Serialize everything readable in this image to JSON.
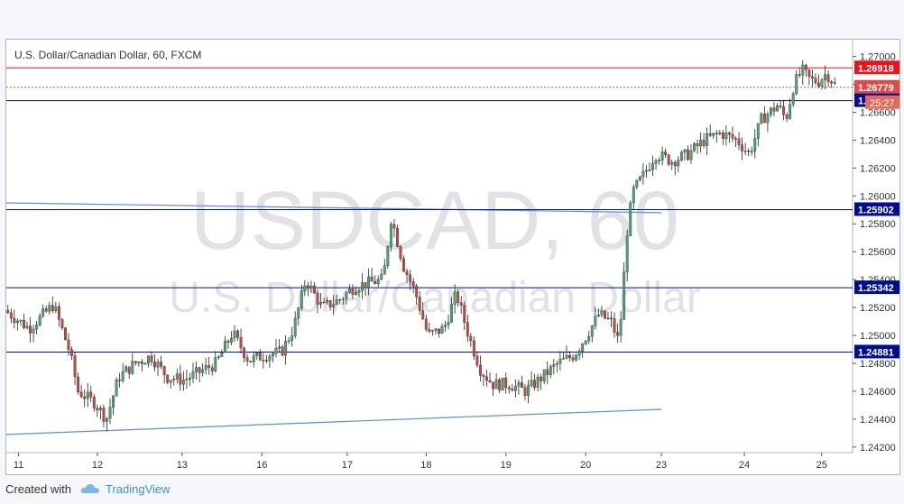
{
  "chart_data": {
    "type": "candlestick",
    "title": "U.S. Dollar/Canadian Dollar, 60, FXCM",
    "watermark": {
      "symbol": "USDCAD, 60",
      "name": "U.S. Dollar/Canadian Dollar"
    },
    "ylim": [
      1.2416,
      1.2712
    ],
    "y_ticks": [
      "1.27000",
      "1.26800",
      "1.26600",
      "1.26400",
      "1.26200",
      "1.26000",
      "1.25800",
      "1.25600",
      "1.25400",
      "1.25200",
      "1.25000",
      "1.24800",
      "1.24600",
      "1.24400",
      "1.24200"
    ],
    "x_ticks": [
      "11",
      "12",
      "13",
      "16",
      "17",
      "18",
      "19",
      "20",
      "23",
      "24",
      "25"
    ],
    "price_lines": [
      {
        "value": 1.26918,
        "label": "1.26918",
        "color": "#e8141c",
        "style": "solid"
      },
      {
        "value": 1.26779,
        "label": "1.26779",
        "color": "#e24a4a",
        "style": "dashed"
      },
      {
        "value": 1.26683,
        "label": "1.26683",
        "color": "#000d8c",
        "style": "solid"
      },
      {
        "value": 1.25902,
        "label": "1.25902",
        "color": "#000d8c",
        "style": "solid"
      },
      {
        "value": 1.25342,
        "label": "1.25342",
        "color": "#000d8c",
        "style": "solid"
      },
      {
        "value": 1.24881,
        "label": "1.24881",
        "color": "#000d8c",
        "style": "solid"
      }
    ],
    "countdown": "25:27",
    "trendlines": [
      {
        "from": [
          0,
          1.2595
        ],
        "to": [
          80.5,
          1.2588
        ],
        "color": "#5b8fd6"
      },
      {
        "from": [
          0,
          1.2429
        ],
        "to": [
          80.5,
          1.2447
        ],
        "color": "#5b8fd6"
      }
    ],
    "x_tick_positions": [
      1.5,
      11.2,
      21.6,
      31.4,
      41.9,
      51.6,
      61.4,
      71.2,
      80.5,
      90.7,
      100.2
    ],
    "price_anchors": [
      [
        0,
        1.2518
      ],
      [
        3,
        1.2505
      ],
      [
        6,
        1.2522
      ],
      [
        8,
        1.2488
      ],
      [
        9,
        1.246
      ],
      [
        11,
        1.2452
      ],
      [
        12.5,
        1.244
      ],
      [
        14,
        1.247
      ],
      [
        16,
        1.248
      ],
      [
        18,
        1.2485
      ],
      [
        20,
        1.247
      ],
      [
        22,
        1.2468
      ],
      [
        24,
        1.2474
      ],
      [
        26,
        1.248
      ],
      [
        28,
        1.2502
      ],
      [
        30,
        1.2482
      ],
      [
        32,
        1.2486
      ],
      [
        34,
        1.2488
      ],
      [
        35.5,
        1.2505
      ],
      [
        37,
        1.254
      ],
      [
        39,
        1.252
      ],
      [
        41,
        1.2525
      ],
      [
        43,
        1.2535
      ],
      [
        45,
        1.2538
      ],
      [
        46.5,
        1.254
      ],
      [
        47.5,
        1.2585
      ],
      [
        49,
        1.255
      ],
      [
        50.5,
        1.253
      ],
      [
        52,
        1.25
      ],
      [
        54,
        1.2505
      ],
      [
        55.5,
        1.253
      ],
      [
        57,
        1.25
      ],
      [
        58.5,
        1.2475
      ],
      [
        60,
        1.2465
      ],
      [
        62,
        1.2465
      ],
      [
        64,
        1.246
      ],
      [
        66,
        1.247
      ],
      [
        68,
        1.248
      ],
      [
        70,
        1.2486
      ],
      [
        71.5,
        1.25
      ],
      [
        73,
        1.2515
      ],
      [
        74.5,
        1.251
      ],
      [
        75.5,
        1.2495
      ],
      [
        76.5,
        1.2575
      ],
      [
        77.2,
        1.2603
      ],
      [
        78.5,
        1.2615
      ],
      [
        80,
        1.263
      ],
      [
        82,
        1.2625
      ],
      [
        84,
        1.263
      ],
      [
        86,
        1.264
      ],
      [
        88,
        1.2645
      ],
      [
        90,
        1.264
      ],
      [
        91.5,
        1.263
      ],
      [
        93,
        1.2655
      ],
      [
        95,
        1.2665
      ],
      [
        96,
        1.2655
      ],
      [
        97,
        1.268
      ],
      [
        98,
        1.269
      ],
      [
        99,
        1.2683
      ],
      [
        100,
        1.2682
      ],
      [
        101,
        1.2688
      ],
      [
        102,
        1.268
      ]
    ],
    "candle_count": 260,
    "grid": false,
    "colors": {
      "up": "#4ca872",
      "down": "#c64b3e",
      "wick": "#222222",
      "axis_text": "#333333",
      "watermark": "#c8ccd3"
    }
  },
  "footer": {
    "created_with": "Created with",
    "brand": "TradingView"
  }
}
